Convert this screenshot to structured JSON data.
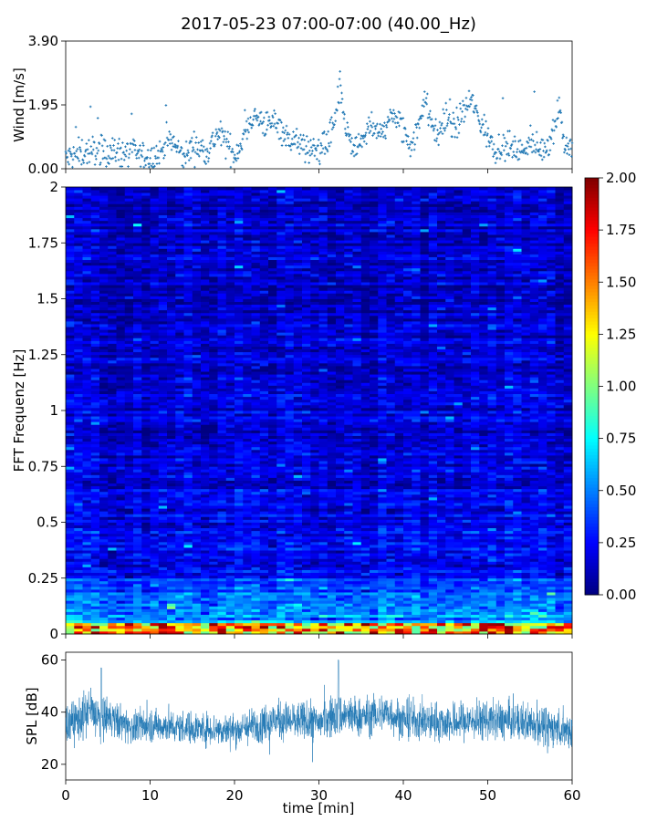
{
  "title": "2017-05-23 07:00-07:00 (40.00_Hz)",
  "chart_data": [
    {
      "type": "scatter",
      "name": "wind-panel",
      "ylabel": "Wind [m/s]",
      "ylim": [
        0,
        3.9
      ],
      "xlim": [
        0,
        60
      ],
      "yticks": [
        0.0,
        1.95,
        3.9
      ],
      "ytick_labels": [
        "0.00",
        "1.95",
        "3.90"
      ],
      "color": "#1f77b4",
      "trend": {
        "x": [
          0,
          2,
          4,
          6,
          8,
          10,
          11,
          12,
          13,
          14,
          15,
          16,
          17,
          18,
          19,
          20,
          21,
          22,
          23,
          24,
          25,
          26,
          27,
          28,
          29,
          30,
          31,
          32,
          32.5,
          33,
          34,
          35,
          36,
          37,
          38,
          39,
          40,
          41,
          42,
          42.5,
          43,
          44,
          45,
          46,
          47,
          48,
          49,
          50,
          51,
          52,
          53,
          54,
          55,
          56,
          57,
          58,
          58.5,
          59,
          60
        ],
        "y": [
          0.3,
          0.5,
          0.6,
          0.5,
          0.5,
          0.3,
          0.4,
          0.9,
          0.7,
          0.3,
          0.7,
          0.6,
          0.6,
          1.1,
          0.8,
          0.4,
          0.9,
          1.6,
          1.5,
          1.3,
          1.5,
          1.0,
          0.9,
          0.7,
          0.5,
          0.6,
          0.8,
          1.5,
          2.5,
          1.5,
          0.5,
          0.8,
          1.3,
          1.0,
          1.4,
          1.6,
          1.1,
          0.7,
          1.5,
          2.3,
          1.6,
          1.0,
          1.6,
          1.2,
          1.7,
          2.1,
          1.5,
          1.0,
          0.6,
          0.8,
          0.6,
          0.5,
          0.9,
          0.6,
          0.7,
          1.4,
          2.0,
          0.8,
          0.6
        ]
      }
    },
    {
      "type": "heatmap",
      "name": "spectrogram-panel",
      "ylabel": "FFT Frequenz [Hz]",
      "ylim": [
        0,
        2
      ],
      "xlim": [
        0,
        60
      ],
      "yticks": [
        0,
        0.25,
        0.5,
        0.75,
        1,
        1.25,
        1.5,
        1.75,
        2
      ],
      "ytick_labels": [
        "0",
        "0.25",
        "0.5",
        "0.75",
        "1",
        "1.25",
        "1.5",
        "1.75",
        "2"
      ],
      "colormap": "jet",
      "colorbar": {
        "range": [
          0,
          2
        ],
        "ticks": [
          0,
          0.25,
          0.5,
          0.75,
          1,
          1.25,
          1.5,
          1.75,
          2
        ],
        "tick_labels": [
          "0.00",
          "0.25",
          "0.50",
          "0.75",
          "1.00",
          "1.25",
          "1.50",
          "1.75",
          "2.00"
        ]
      }
    },
    {
      "type": "line",
      "name": "spl-panel",
      "ylabel": "SPL [dB]",
      "xlabel": "time [min]",
      "xlim": [
        0,
        60
      ],
      "ylim": [
        14,
        63
      ],
      "xticks": [
        0,
        10,
        20,
        30,
        40,
        50,
        60
      ],
      "xtick_labels": [
        "0",
        "10",
        "20",
        "30",
        "40",
        "50",
        "60"
      ],
      "yticks": [
        20,
        40,
        60
      ],
      "ytick_labels": [
        "20",
        "40",
        "60"
      ],
      "color": "#1f77b4",
      "envelope": {
        "x": [
          0,
          2,
          3,
          4,
          5,
          8,
          10,
          15,
          20,
          25,
          30,
          32,
          35,
          38,
          40,
          45,
          50,
          55,
          58,
          60
        ],
        "center": [
          35,
          38,
          41,
          37,
          38,
          34,
          35,
          34,
          33,
          37,
          36,
          39,
          38,
          40,
          37,
          36,
          37,
          36,
          34,
          33
        ],
        "spread": [
          6,
          7,
          8,
          7,
          6,
          5,
          5,
          5,
          5,
          6,
          6,
          7,
          6,
          6,
          6,
          6,
          6,
          6,
          6,
          6
        ]
      }
    }
  ]
}
